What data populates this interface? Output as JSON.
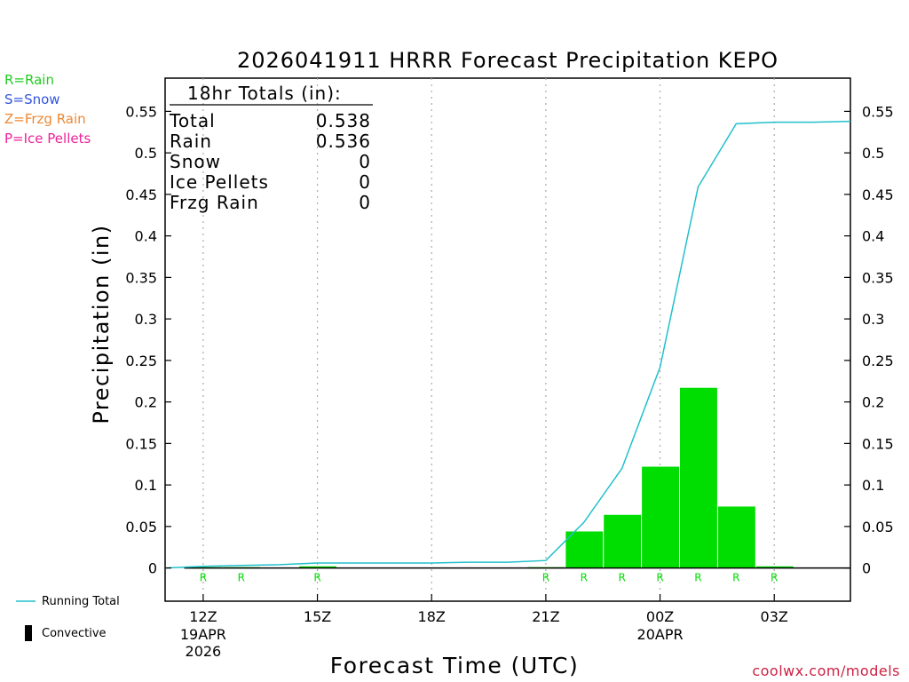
{
  "chart_data": {
    "type": "bar",
    "title": "2026041911 HRRR Forecast Precipitation KEPO",
    "xlabel": "Forecast Time (UTC)",
    "ylabel": "Precipitation (in)",
    "ylim": [
      -0.04,
      0.59
    ],
    "yticks": [
      0,
      0.05,
      0.1,
      0.15,
      0.2,
      0.25,
      0.3,
      0.35,
      0.4,
      0.45,
      0.5,
      0.55
    ],
    "ytick_labels": [
      "0",
      "0.05",
      "0.1",
      "0.15",
      "0.2",
      "0.25",
      "0.3",
      "0.35",
      "0.4",
      "0.45",
      "0.5",
      "0.55"
    ],
    "xlim": [
      11,
      29
    ],
    "xticks": [
      {
        "hour": 12,
        "label": "12Z",
        "sub1": "19APR",
        "sub2": "2026"
      },
      {
        "hour": 15,
        "label": "15Z",
        "sub1": "",
        "sub2": ""
      },
      {
        "hour": 18,
        "label": "18Z",
        "sub1": "",
        "sub2": ""
      },
      {
        "hour": 21,
        "label": "21Z",
        "sub1": "",
        "sub2": ""
      },
      {
        "hour": 24,
        "label": "00Z",
        "sub1": "20APR",
        "sub2": ""
      },
      {
        "hour": 27,
        "label": "03Z",
        "sub1": "",
        "sub2": ""
      }
    ],
    "bars": {
      "name": "Rain",
      "color": "#00dd00",
      "x": [
        12,
        13,
        14,
        15,
        16,
        17,
        18,
        19,
        20,
        21,
        22,
        23,
        24,
        25,
        26,
        27,
        28
      ],
      "values": [
        0.001,
        0.001,
        0.0,
        0.002,
        0.0,
        0.0,
        0.0,
        0.0,
        0.0,
        0.001,
        0.044,
        0.064,
        0.122,
        0.217,
        0.074,
        0.002,
        0.0
      ]
    },
    "running_total": {
      "name": "Running Total",
      "color": "#22c0cc",
      "x": [
        11,
        12,
        13,
        14,
        15,
        16,
        17,
        18,
        19,
        20,
        21,
        22,
        23,
        24,
        25,
        26,
        27,
        28,
        29
      ],
      "values": [
        0.0,
        0.002,
        0.003,
        0.004,
        0.006,
        0.006,
        0.006,
        0.006,
        0.007,
        0.007,
        0.009,
        0.055,
        0.12,
        0.242,
        0.459,
        0.535,
        0.537,
        0.537,
        0.538
      ]
    },
    "ptype_markers": {
      "color": "#00dd00",
      "items": [
        {
          "x": 12,
          "label": "R"
        },
        {
          "x": 13,
          "label": "R"
        },
        {
          "x": 15,
          "label": "R"
        },
        {
          "x": 21,
          "label": "R"
        },
        {
          "x": 22,
          "label": "R"
        },
        {
          "x": 23,
          "label": "R"
        },
        {
          "x": 24,
          "label": "R"
        },
        {
          "x": 25,
          "label": "R"
        },
        {
          "x": 26,
          "label": "R"
        },
        {
          "x": 27,
          "label": "R"
        }
      ]
    },
    "totals_box": {
      "heading": "18hr Totals (in):",
      "rows": [
        {
          "label": "Total",
          "value": "0.538"
        },
        {
          "label": "Rain",
          "value": "0.536"
        },
        {
          "label": "Snow",
          "value": "0"
        },
        {
          "label": "Ice Pellets",
          "value": "0"
        },
        {
          "label": "Frzg Rain",
          "value": "0"
        }
      ]
    },
    "grid": "vertical-dotted",
    "legend": "bottom-left"
  },
  "ptype_legend": [
    {
      "text": "R=Rain",
      "color": "#22cc22"
    },
    {
      "text": "S=Snow",
      "color": "#3355dd"
    },
    {
      "text": "Z=Frzg Rain",
      "color": "#ee8833"
    },
    {
      "text": "P=Ice Pellets",
      "color": "#ee2299"
    }
  ],
  "legend": {
    "running_total": "Running Total",
    "convective": "Convective"
  },
  "credit": "coolwx.com/models"
}
